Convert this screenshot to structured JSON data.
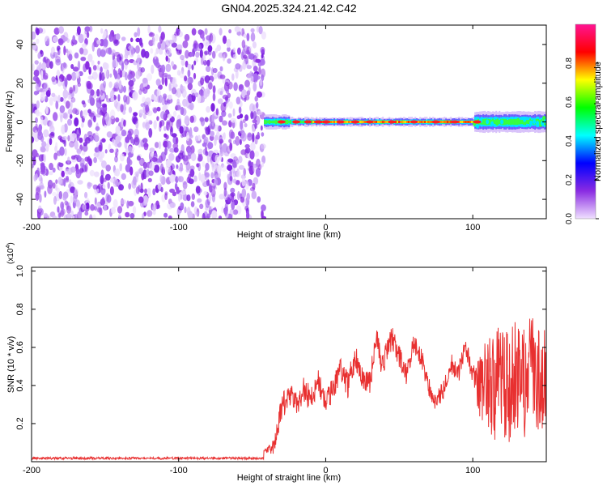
{
  "figure": {
    "title": "GN04.2025.324.21.42.C42"
  },
  "chart_data": [
    {
      "type": "heatmap",
      "title": "GN04.2025.324.21.42.C42",
      "xlabel": "Height of straight line (km)",
      "ylabel": "Frequency (Hz)",
      "xlim": [
        -200,
        150
      ],
      "ylim": [
        -50,
        50
      ],
      "xticks": [
        -200,
        -100,
        0,
        100
      ],
      "xtick_labels": [
        "-200",
        "-100",
        "0",
        "100"
      ],
      "yticks": [
        -40,
        -20,
        0,
        20,
        40
      ],
      "ytick_labels": [
        "-40",
        "-20",
        "0",
        "20",
        "40"
      ],
      "colorbar": {
        "label": "Normalized spectral amplitude",
        "range": [
          0,
          1
        ],
        "ticks": [
          0.0,
          0.2,
          0.4,
          0.6,
          0.8
        ],
        "tick_labels": [
          "0.0",
          "0.2",
          "0.4",
          "0.6",
          "0.8"
        ],
        "colormap": "rainbow",
        "colors": [
          "#f0e0ff",
          "#8a2be2",
          "#0000ff",
          "#00ffff",
          "#00ff00",
          "#ffff00",
          "#ff0000",
          "#ff1493"
        ]
      },
      "regions": [
        {
          "name": "noise",
          "x_range": [
            -200,
            -42
          ],
          "y_range": [
            -50,
            48
          ],
          "amplitude_range": [
            0.0,
            0.08
          ],
          "color": "#8a2be2"
        },
        {
          "name": "signal-band",
          "x_range": [
            -42,
            150
          ],
          "center_frequency": 0,
          "half_width": [
            2,
            6
          ],
          "amplitude_range": [
            0.3,
            1.0
          ]
        }
      ],
      "signal_peaks_x": [
        -30,
        -20,
        -12,
        -5,
        0,
        10,
        20,
        30,
        45,
        60,
        75,
        88,
        103
      ]
    },
    {
      "type": "line",
      "title": "",
      "xlabel": "Height of straight line (km)",
      "ylabel": "SNR (10 * v/v)",
      "y_multiplier": "(x10",
      "y_multiplier_exp": "4",
      "y_multiplier_close": ")",
      "xlim": [
        -200,
        150
      ],
      "ylim": [
        0,
        1.02
      ],
      "xticks": [
        -200,
        -100,
        0,
        100
      ],
      "xtick_labels": [
        "-200",
        "-100",
        "0",
        "100"
      ],
      "yticks": [
        0.2,
        0.4,
        0.6,
        0.8,
        1.0
      ],
      "ytick_labels": [
        "0.2",
        "0.4",
        "0.6",
        "0.8",
        "1.0"
      ],
      "series": [
        {
          "name": "SNR",
          "color": "#e83030",
          "anchors": {
            "x": [
              -200,
              -150,
              -100,
              -50,
              -35,
              -30,
              -25,
              -20,
              -15,
              -10,
              -5,
              0,
              5,
              10,
              15,
              20,
              25,
              30,
              35,
              38,
              42,
              45,
              50,
              55,
              60,
              65,
              70,
              75,
              80,
              85,
              90,
              95,
              100,
              105,
              110,
              115,
              120,
              125,
              130,
              135,
              140,
              145,
              150
            ],
            "y": [
              0.02,
              0.02,
              0.02,
              0.02,
              0.08,
              0.28,
              0.35,
              0.3,
              0.38,
              0.33,
              0.42,
              0.3,
              0.38,
              0.5,
              0.4,
              0.55,
              0.45,
              0.42,
              0.66,
              0.5,
              0.58,
              0.65,
              0.55,
              0.45,
              0.62,
              0.55,
              0.4,
              0.3,
              0.38,
              0.52,
              0.45,
              0.62,
              0.45,
              0.38,
              0.45,
              0.4,
              0.42,
              0.4,
              0.45,
              0.4,
              0.5,
              0.4,
              0.4
            ]
          },
          "noise_amplitude": {
            "x": [
              -200,
              -42,
              -35,
              -30,
              0,
              50,
              100,
              108,
              115,
              150
            ],
            "y": [
              0.01,
              0.01,
              0.04,
              0.07,
              0.07,
              0.06,
              0.05,
              0.25,
              0.3,
              0.3
            ]
          }
        }
      ]
    }
  ]
}
